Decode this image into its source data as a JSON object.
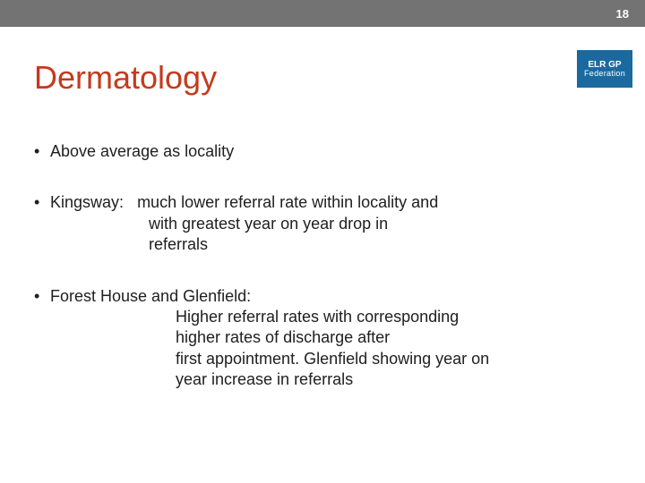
{
  "page_number": "18",
  "logo": {
    "line1": "ELR GP",
    "line2": "Federation"
  },
  "title": "Dermatology",
  "bullets": {
    "b1": {
      "text": "Above average as locality"
    },
    "b2": {
      "lead": "Kingsway:",
      "l1": "much lower referral rate within locality and",
      "l2": "with greatest year on year drop in",
      "l3": "referrals"
    },
    "b3": {
      "lead": "Forest House and Glenfield:",
      "l1": "Higher referral rates with corresponding",
      "l2": "higher rates of discharge after",
      "l3": "first appointment. Glenfield showing year on",
      "l4": "year increase in referrals"
    }
  },
  "colors": {
    "topbar": "#737373",
    "title": "#c33b1d",
    "logo_bg": "#1a6aa0",
    "text": "#202020"
  }
}
